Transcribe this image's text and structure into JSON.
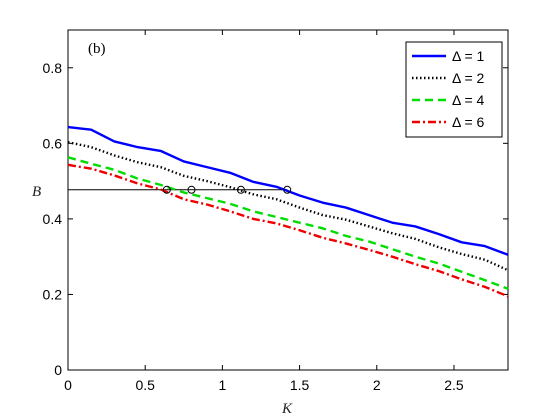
{
  "chart_data": {
    "type": "line",
    "panel_label": "(b)",
    "xlabel": "K",
    "ylabel": "B",
    "xlim": [
      0,
      2.85
    ],
    "ylim": [
      0,
      0.9
    ],
    "x_ticks": [
      0,
      0.5,
      1,
      1.5,
      2,
      2.5
    ],
    "x_tick_labels": [
      "0",
      "0.5",
      "1",
      "1.5",
      "2",
      "2.5"
    ],
    "y_ticks": [
      0,
      0.2,
      0.4,
      0.6,
      0.8
    ],
    "y_tick_labels": [
      "0",
      "0.2",
      "0.4",
      "0.6",
      "0.8"
    ],
    "grid": false,
    "legend_position": "top-right",
    "series": [
      {
        "name": "Δ = 1",
        "color": "#0000ff",
        "style": "solid",
        "x": [
          0,
          0.15,
          0.3,
          0.45,
          0.6,
          0.75,
          0.9,
          1.05,
          1.2,
          1.35,
          1.5,
          1.65,
          1.8,
          1.95,
          2.1,
          2.25,
          2.4,
          2.55,
          2.7,
          2.85
        ],
        "y": [
          0.643,
          0.636,
          0.605,
          0.59,
          0.58,
          0.552,
          0.537,
          0.522,
          0.498,
          0.485,
          0.462,
          0.443,
          0.43,
          0.41,
          0.39,
          0.38,
          0.36,
          0.338,
          0.328,
          0.305
        ]
      },
      {
        "name": "Δ = 2",
        "color": "#000000",
        "style": "dotted",
        "x": [
          0,
          0.15,
          0.3,
          0.45,
          0.6,
          0.75,
          0.9,
          1.05,
          1.2,
          1.35,
          1.5,
          1.65,
          1.8,
          1.95,
          2.1,
          2.25,
          2.4,
          2.55,
          2.7,
          2.85
        ],
        "y": [
          0.603,
          0.59,
          0.568,
          0.55,
          0.537,
          0.514,
          0.5,
          0.484,
          0.465,
          0.452,
          0.43,
          0.41,
          0.398,
          0.38,
          0.362,
          0.347,
          0.325,
          0.307,
          0.292,
          0.264
        ]
      },
      {
        "name": "Δ = 4",
        "color": "#00dd00",
        "style": "dashed",
        "x": [
          0,
          0.15,
          0.3,
          0.45,
          0.6,
          0.75,
          0.9,
          1.05,
          1.2,
          1.35,
          1.5,
          1.65,
          1.8,
          1.95,
          2.1,
          2.25,
          2.4,
          2.55,
          2.7,
          2.85
        ],
        "y": [
          0.563,
          0.546,
          0.53,
          0.507,
          0.49,
          0.47,
          0.455,
          0.44,
          0.42,
          0.405,
          0.39,
          0.375,
          0.355,
          0.34,
          0.32,
          0.3,
          0.282,
          0.26,
          0.238,
          0.215
        ]
      },
      {
        "name": "Δ = 6",
        "color": "#ee0000",
        "style": "dashdot",
        "x": [
          0,
          0.15,
          0.3,
          0.45,
          0.6,
          0.75,
          0.9,
          1.05,
          1.2,
          1.35,
          1.5,
          1.65,
          1.8,
          1.95,
          2.1,
          2.25,
          2.4,
          2.55,
          2.7,
          2.85
        ],
        "y": [
          0.543,
          0.533,
          0.515,
          0.494,
          0.478,
          0.452,
          0.438,
          0.42,
          0.4,
          0.388,
          0.37,
          0.35,
          0.335,
          0.318,
          0.3,
          0.28,
          0.262,
          0.24,
          0.22,
          0.195
        ]
      }
    ],
    "reference_line": {
      "y": 0.477,
      "x_start": 0,
      "x_end": 1.42
    },
    "markers": [
      {
        "x": 0.64,
        "y": 0.477
      },
      {
        "x": 0.8,
        "y": 0.477
      },
      {
        "x": 1.12,
        "y": 0.477
      },
      {
        "x": 1.42,
        "y": 0.477
      }
    ]
  }
}
